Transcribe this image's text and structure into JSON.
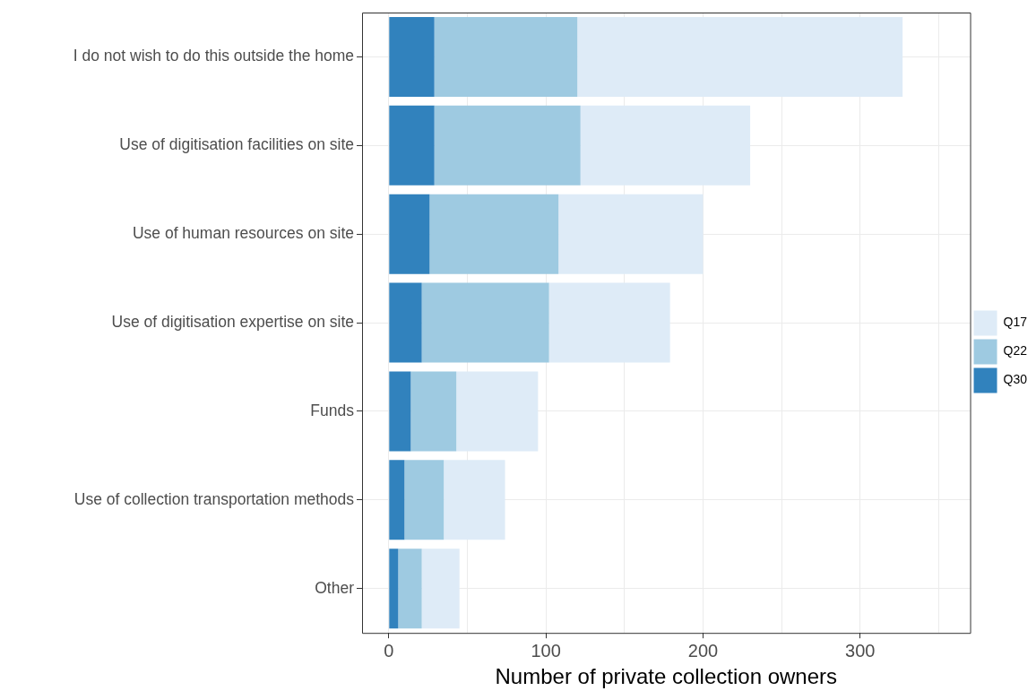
{
  "chart_data": {
    "type": "bar",
    "orientation": "horizontal",
    "stacked": true,
    "xlabel": "Number of private collection owners",
    "categories": [
      "I do not wish to do this outside the home",
      "Use of digitisation facilities on site",
      "Use of human resources on site",
      "Use of digitisation expertise on site",
      "Funds",
      "Use of collection transportation methods",
      "Other"
    ],
    "series": [
      {
        "name": "Q30",
        "color": "#3182bd",
        "values": [
          29,
          29,
          26,
          21,
          14,
          10,
          6
        ]
      },
      {
        "name": "Q22",
        "color": "#9ecae1",
        "values": [
          91,
          93,
          82,
          81,
          29,
          25,
          15
        ]
      },
      {
        "name": "Q17",
        "color": "#deebf7",
        "values": [
          207,
          108,
          92,
          77,
          52,
          39,
          24
        ]
      }
    ],
    "xlim": [
      -17,
      370
    ],
    "xticks": [
      0,
      {
        "value": 50,
        "label": null
      },
      100,
      {
        "value": 150,
        "label": null
      },
      200,
      {
        "value": 250,
        "label": null
      },
      300,
      {
        "value": 350,
        "label": null
      }
    ],
    "grid": true,
    "legend": "right"
  }
}
